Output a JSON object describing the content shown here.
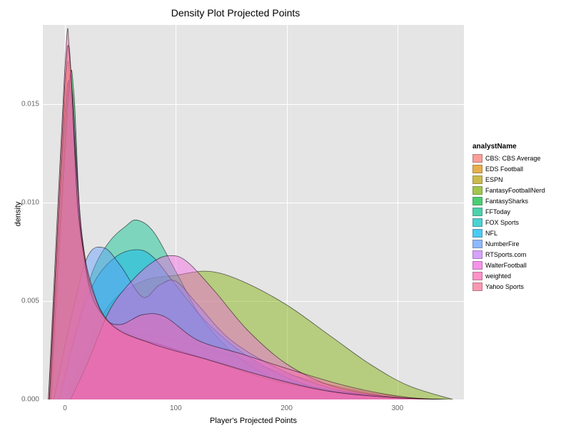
{
  "chart": {
    "type": "density",
    "title": "Density Plot Projected Points",
    "title_fontsize": 14,
    "xlabel": "Player's Projected Points",
    "ylabel": "density",
    "label_fontsize": 11,
    "background_color": "#ffffff",
    "panel_color": "#e5e5e5",
    "grid_color": "#ffffff",
    "xlim": [
      -20,
      360
    ],
    "ylim": [
      0,
      0.019
    ],
    "xticks": [
      0,
      100,
      200,
      300
    ],
    "yticks": [
      0.0,
      0.005,
      0.01,
      0.015
    ],
    "fill_opacity": 0.45,
    "stroke_width": 0.8,
    "stroke_color": "#000000",
    "legend_title": "analystName",
    "legend_fontsize": 9,
    "series": [
      {
        "name": "CBS: CBS Average",
        "color": "#f8766d",
        "points": [
          [
            -15,
            0
          ],
          [
            0,
            0.0145
          ],
          [
            5,
            0.015
          ],
          [
            15,
            0.0085
          ],
          [
            30,
            0.0042
          ],
          [
            50,
            0.0035
          ],
          [
            100,
            0.003
          ],
          [
            150,
            0.0022
          ],
          [
            200,
            0.0013
          ],
          [
            260,
            0.0005
          ],
          [
            310,
            0.0001
          ],
          [
            345,
            0
          ]
        ]
      },
      {
        "name": "EDS Football",
        "color": "#de8c00",
        "points": [
          [
            -14,
            0
          ],
          [
            0,
            0.014
          ],
          [
            6,
            0.0148
          ],
          [
            15,
            0.0075
          ],
          [
            30,
            0.0048
          ],
          [
            50,
            0.003
          ],
          [
            80,
            0.0025
          ],
          [
            130,
            0.002
          ],
          [
            190,
            0.001
          ],
          [
            245,
            0.0004
          ],
          [
            300,
            0.0001
          ],
          [
            340,
            0
          ]
        ]
      },
      {
        "name": "ESPN",
        "color": "#b79f00",
        "points": [
          [
            -13,
            0
          ],
          [
            0,
            0.0155
          ],
          [
            5,
            0.016
          ],
          [
            12,
            0.009
          ],
          [
            25,
            0.0055
          ],
          [
            45,
            0.0037
          ],
          [
            85,
            0.0028
          ],
          [
            130,
            0.002
          ],
          [
            180,
            0.0012
          ],
          [
            235,
            0.0005
          ],
          [
            290,
            0.0001
          ],
          [
            335,
            0
          ]
        ]
      },
      {
        "name": "FantasyFootballNerd",
        "color": "#7cae00",
        "points": [
          [
            0,
            0
          ],
          [
            15,
            0.002
          ],
          [
            40,
            0.0048
          ],
          [
            70,
            0.006
          ],
          [
            100,
            0.0063
          ],
          [
            130,
            0.0065
          ],
          [
            160,
            0.006
          ],
          [
            200,
            0.0048
          ],
          [
            240,
            0.0032
          ],
          [
            275,
            0.0018
          ],
          [
            310,
            0.0007
          ],
          [
            350,
            0
          ]
        ]
      },
      {
        "name": "FantasySharks",
        "color": "#00ba38",
        "points": [
          [
            -12,
            0
          ],
          [
            3,
            0.015
          ],
          [
            8,
            0.0156
          ],
          [
            15,
            0.008
          ],
          [
            28,
            0.005
          ],
          [
            48,
            0.0036
          ],
          [
            90,
            0.0027
          ],
          [
            140,
            0.0019
          ],
          [
            190,
            0.001
          ],
          [
            240,
            0.0004
          ],
          [
            295,
            0.0001
          ],
          [
            338,
            0
          ]
        ]
      },
      {
        "name": "FFToday",
        "color": "#00c08b",
        "points": [
          [
            -5,
            0
          ],
          [
            10,
            0.0035
          ],
          [
            25,
            0.0065
          ],
          [
            40,
            0.008
          ],
          [
            55,
            0.0088
          ],
          [
            65,
            0.0091
          ],
          [
            80,
            0.0085
          ],
          [
            100,
            0.0065
          ],
          [
            125,
            0.004
          ],
          [
            160,
            0.002
          ],
          [
            200,
            0.0008
          ],
          [
            250,
            0.0002
          ],
          [
            300,
            0
          ]
        ]
      },
      {
        "name": "FOX Sports",
        "color": "#00bfc4",
        "points": [
          [
            -14,
            0
          ],
          [
            0,
            0.0145
          ],
          [
            6,
            0.0152
          ],
          [
            15,
            0.0082
          ],
          [
            30,
            0.0045
          ],
          [
            55,
            0.0032
          ],
          [
            95,
            0.0026
          ],
          [
            140,
            0.0018
          ],
          [
            195,
            0.001
          ],
          [
            248,
            0.0004
          ],
          [
            300,
            0.0001
          ],
          [
            342,
            0
          ]
        ]
      },
      {
        "name": "NFL",
        "color": "#00b4f0",
        "points": [
          [
            -5,
            0
          ],
          [
            8,
            0.003
          ],
          [
            25,
            0.0058
          ],
          [
            45,
            0.0072
          ],
          [
            65,
            0.0076
          ],
          [
            80,
            0.0072
          ],
          [
            100,
            0.0058
          ],
          [
            130,
            0.0038
          ],
          [
            170,
            0.002
          ],
          [
            215,
            0.0008
          ],
          [
            265,
            0.0002
          ],
          [
            310,
            0
          ]
        ]
      },
      {
        "name": "NumberFire",
        "color": "#619cff",
        "points": [
          [
            -10,
            0
          ],
          [
            5,
            0.004
          ],
          [
            20,
            0.0072
          ],
          [
            35,
            0.0077
          ],
          [
            50,
            0.0068
          ],
          [
            70,
            0.0052
          ],
          [
            85,
            0.0058
          ],
          [
            100,
            0.006
          ],
          [
            120,
            0.0048
          ],
          [
            150,
            0.003
          ],
          [
            195,
            0.0015
          ],
          [
            245,
            0.0005
          ],
          [
            300,
            0.0001
          ],
          [
            345,
            0
          ]
        ]
      },
      {
        "name": "RTSports.com",
        "color": "#c77cff",
        "points": [
          [
            -13,
            0
          ],
          [
            2,
            0.0148
          ],
          [
            7,
            0.0154
          ],
          [
            15,
            0.0082
          ],
          [
            28,
            0.005
          ],
          [
            48,
            0.0035
          ],
          [
            90,
            0.0027
          ],
          [
            135,
            0.0019
          ],
          [
            185,
            0.001
          ],
          [
            240,
            0.0004
          ],
          [
            295,
            0.0001
          ],
          [
            338,
            0
          ]
        ]
      },
      {
        "name": "WalterFootball",
        "color": "#f564e3",
        "points": [
          [
            5,
            0
          ],
          [
            20,
            0.0018
          ],
          [
            40,
            0.0045
          ],
          [
            60,
            0.006
          ],
          [
            80,
            0.007
          ],
          [
            95,
            0.0073
          ],
          [
            110,
            0.007
          ],
          [
            135,
            0.0055
          ],
          [
            165,
            0.0035
          ],
          [
            200,
            0.0018
          ],
          [
            240,
            0.0007
          ],
          [
            285,
            0.0002
          ],
          [
            325,
            0
          ]
        ]
      },
      {
        "name": "weighted",
        "color": "#ff64b0",
        "points": [
          [
            -15,
            0
          ],
          [
            0,
            0.017
          ],
          [
            4,
            0.0178
          ],
          [
            10,
            0.012
          ],
          [
            20,
            0.0062
          ],
          [
            35,
            0.0042
          ],
          [
            50,
            0.0038
          ],
          [
            70,
            0.0043
          ],
          [
            90,
            0.0042
          ],
          [
            120,
            0.003
          ],
          [
            160,
            0.0023
          ],
          [
            210,
            0.0014
          ],
          [
            260,
            0.0006
          ],
          [
            310,
            0.0001
          ],
          [
            348,
            0
          ]
        ]
      },
      {
        "name": "Yahoo Sports",
        "color": "#ff6c91",
        "points": [
          [
            -14,
            0
          ],
          [
            0,
            0.0162
          ],
          [
            5,
            0.0168
          ],
          [
            12,
            0.0095
          ],
          [
            24,
            0.0058
          ],
          [
            42,
            0.0038
          ],
          [
            80,
            0.0028
          ],
          [
            130,
            0.002
          ],
          [
            185,
            0.0011
          ],
          [
            240,
            0.0004
          ],
          [
            295,
            0.0001
          ],
          [
            340,
            0
          ]
        ]
      }
    ]
  }
}
